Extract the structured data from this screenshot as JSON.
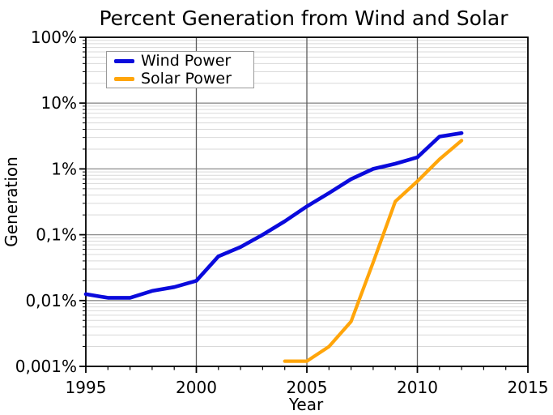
{
  "chart": {
    "title": "Percent Generation from Wind and Solar",
    "xlabel": "Year",
    "ylabel": "Generation"
  },
  "chart_data": {
    "type": "line",
    "title": "Percent Generation from Wind and Solar",
    "xlabel": "Year",
    "ylabel": "Generation",
    "x_axis": {
      "min": 1995,
      "max": 2015,
      "major_ticks": [
        1995,
        2000,
        2005,
        2010,
        2015
      ],
      "major_tick_labels": [
        "1995",
        "2000",
        "2005",
        "2010",
        "2015"
      ],
      "minor_tick_step_years": 1,
      "major_gridlines_at": [
        2000,
        2005,
        2010
      ]
    },
    "y_axis": {
      "scale": "log",
      "min_percent": 0.001,
      "max_percent": 100,
      "tick_values_percent": [
        100,
        10,
        1,
        0.1,
        0.01,
        0.001
      ],
      "tick_labels": [
        "100%",
        "10%",
        "1%",
        "0,1%",
        "0,01%",
        "0,001%"
      ],
      "decimal_separator": ","
    },
    "grid": {
      "major": true,
      "minor": true
    },
    "legend_position": "upper-left",
    "series": [
      {
        "name": "Wind Power",
        "color": "#0a0adc",
        "x": [
          1995,
          1996,
          1997,
          1998,
          1999,
          2000,
          2001,
          2002,
          2003,
          2004,
          2005,
          2006,
          2007,
          2008,
          2009,
          2010,
          2011,
          2012
        ],
        "values_percent": [
          0.0125,
          0.011,
          0.011,
          0.014,
          0.016,
          0.02,
          0.047,
          0.065,
          0.1,
          0.16,
          0.27,
          0.43,
          0.7,
          1.0,
          1.2,
          1.5,
          3.1,
          3.5
        ]
      },
      {
        "name": "Solar Power",
        "color": "#ffa50a",
        "x": [
          2004,
          2005,
          2006,
          2007,
          2008,
          2009,
          2010,
          2011,
          2012
        ],
        "values_percent": [
          0.0012,
          0.0012,
          0.002,
          0.0048,
          0.038,
          0.32,
          0.65,
          1.4,
          2.7
        ]
      }
    ],
    "colors": {
      "minor_grid": "#d9d9d9",
      "major_grid": "#8c8c8c",
      "vertical_grid": "#5c5c5c",
      "axis": "#000000",
      "background": "#ffffff"
    }
  }
}
